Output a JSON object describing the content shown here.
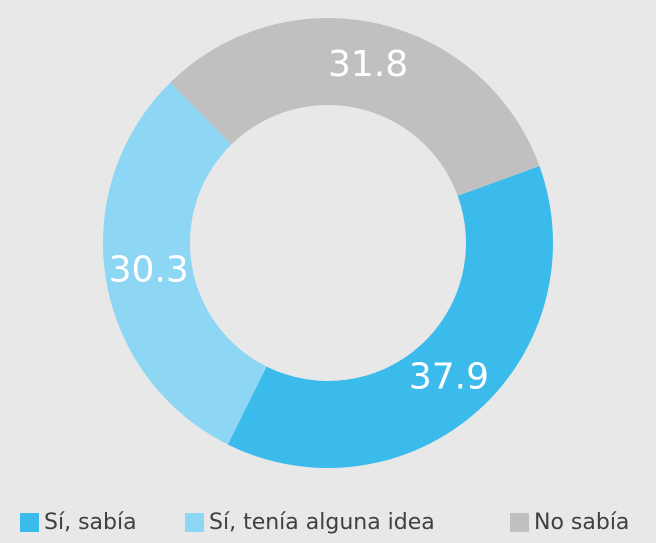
{
  "chart_data": {
    "type": "donut",
    "categories": [
      "Sí, sabía",
      "Sí, tenía alguna idea",
      "No sabía"
    ],
    "values": [
      37.9,
      30.3,
      31.8
    ],
    "colors": [
      "#3bbbec",
      "#8dd6f4",
      "#c0c0c0"
    ],
    "legend": "bottom"
  }
}
